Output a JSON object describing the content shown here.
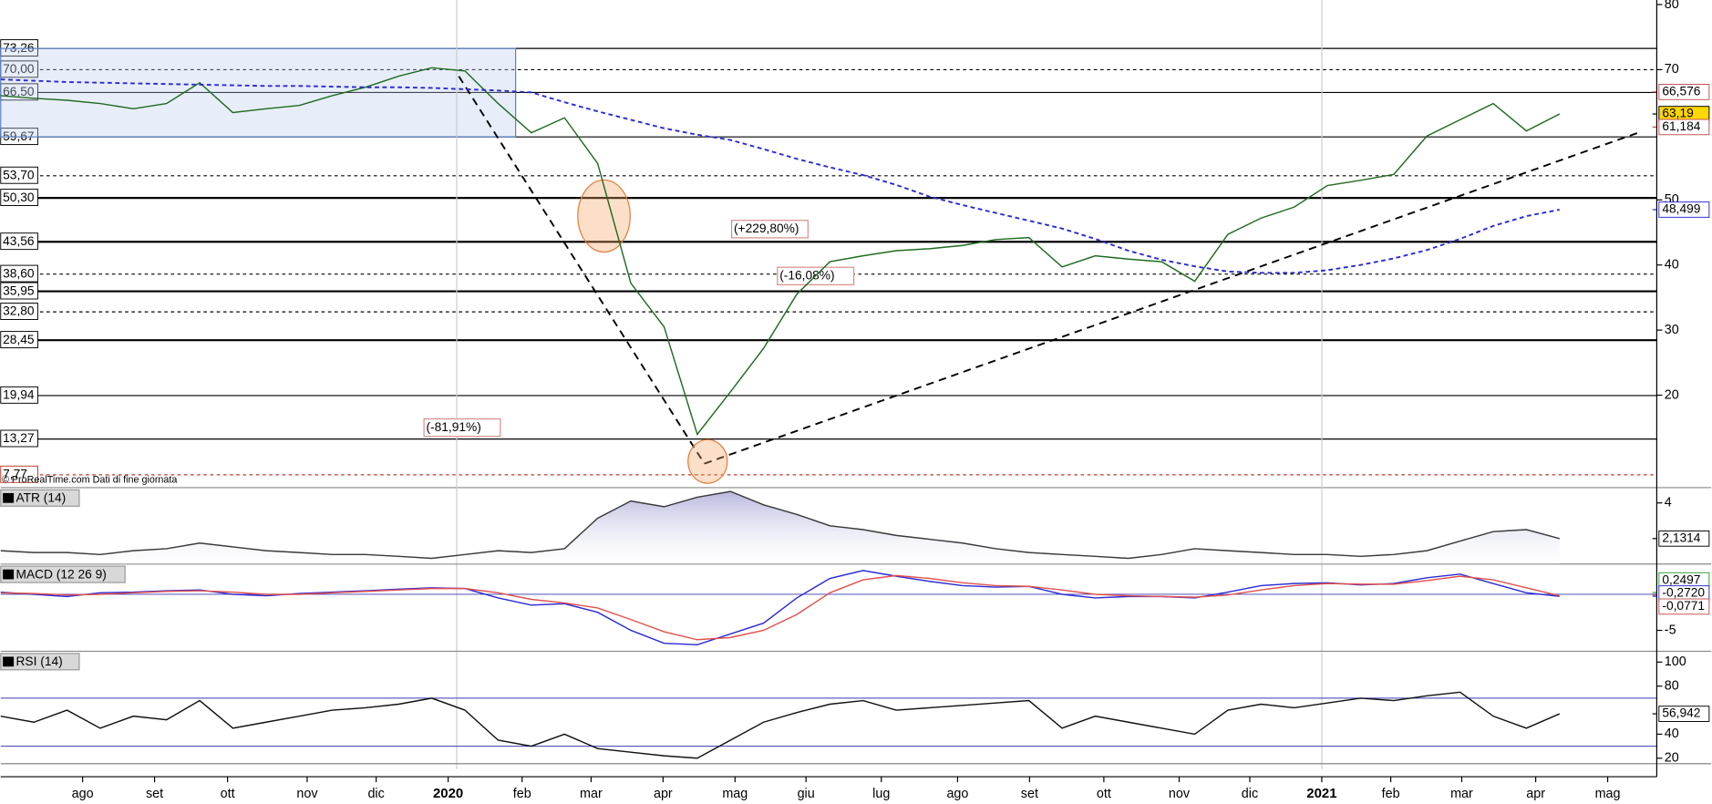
{
  "chart_data": [
    {
      "type": "line",
      "name": "price",
      "series": [
        {
          "name": "price",
          "color": "#1f6b1f",
          "values": [
            66,
            65.6,
            65.3,
            64.8,
            64,
            64.8,
            68,
            63.4,
            64,
            64.5,
            66,
            67.3,
            69,
            70.3,
            69.8,
            64.8,
            60.3,
            62.6,
            55.6,
            37.2,
            30.5,
            14,
            20.5,
            27.2,
            35.5,
            40.5,
            41.4,
            42.2,
            42.5,
            43,
            43.9,
            44.2,
            39.7,
            41.4,
            40.9,
            40.5,
            37.5,
            44.7,
            47.2,
            48.9,
            52.2,
            53,
            53.9,
            59.8,
            62.3,
            64.8,
            60.6,
            63.19
          ]
        },
        {
          "name": "ma",
          "color": "#2b2bd6",
          "dashed": true,
          "values": [
            68.5,
            68.3,
            68.1,
            68,
            67.9,
            67.8,
            67.7,
            67.6,
            67.5,
            67.5,
            67.4,
            67.3,
            67.3,
            67.2,
            67,
            66.8,
            66.5,
            65,
            63.6,
            62.3,
            61,
            60,
            59.2,
            57.8,
            56.3,
            55,
            53.8,
            52.3,
            50.5,
            49.2,
            48,
            46.8,
            45.6,
            44,
            42.2,
            40.8,
            39.8,
            39,
            38.8,
            38.8,
            39.2,
            40,
            41,
            42.3,
            44,
            46,
            47.5,
            48.499
          ]
        }
      ],
      "ylim": [
        5.8,
        80.7
      ],
      "yticks": [
        20,
        30,
        40,
        50,
        70,
        80
      ],
      "xlim": [
        0,
        49.93
      ],
      "xticks": [
        {
          "value": 2.47,
          "label": "ago"
        },
        {
          "value": 4.64,
          "label": "set"
        },
        {
          "value": 6.84,
          "label": "ott"
        },
        {
          "value": 9.24,
          "label": "nov"
        },
        {
          "value": 11.32,
          "label": "dic"
        },
        {
          "value": 13.49,
          "label": "2020"
        },
        {
          "value": 15.72,
          "label": "feb"
        },
        {
          "value": 17.8,
          "label": "mar"
        },
        {
          "value": 19.97,
          "label": "apr"
        },
        {
          "value": 22.14,
          "label": "mag"
        },
        {
          "value": 24.28,
          "label": "giu"
        },
        {
          "value": 26.55,
          "label": "lug"
        },
        {
          "value": 28.85,
          "label": "ago"
        },
        {
          "value": 31.02,
          "label": "set"
        },
        {
          "value": 33.26,
          "label": "ott"
        },
        {
          "value": 35.53,
          "label": "nov"
        },
        {
          "value": 37.66,
          "label": "dic"
        },
        {
          "value": 39.83,
          "label": "2021"
        },
        {
          "value": 41.91,
          "label": "feb"
        },
        {
          "value": 44.05,
          "label": "mar"
        },
        {
          "value": 46.28,
          "label": "apr"
        },
        {
          "value": 48.45,
          "label": "mag"
        }
      ],
      "levels": [
        {
          "value": 73.26,
          "label": "73,26",
          "style": "solid"
        },
        {
          "value": 70.0,
          "label": "70,00",
          "style": "dotted"
        },
        {
          "value": 66.5,
          "label": "66,50",
          "style": "solid"
        },
        {
          "value": 59.67,
          "label": "59,67",
          "style": "solid"
        },
        {
          "value": 53.7,
          "label": "53,70",
          "style": "dotted"
        },
        {
          "value": 50.3,
          "label": "50,30",
          "style": "bold"
        },
        {
          "value": 43.56,
          "label": "43,56",
          "style": "bold"
        },
        {
          "value": 38.6,
          "label": "38,60",
          "style": "dotted"
        },
        {
          "value": 35.95,
          "label": "35,95",
          "style": "bold"
        },
        {
          "value": 32.8,
          "label": "32,80",
          "style": "dotted"
        },
        {
          "value": 28.45,
          "label": "28,45",
          "style": "bold"
        },
        {
          "value": 19.94,
          "label": "19,94",
          "style": "solid"
        },
        {
          "value": 13.27,
          "label": "13,27",
          "style": "solid"
        },
        {
          "value": 7.77,
          "label": "7,77",
          "style": "dotted",
          "color": "#c0392b"
        }
      ],
      "last_values": [
        {
          "value": 66.576,
          "label": "66,576",
          "color": "#c0504d",
          "bg": "#ffffff"
        },
        {
          "value": 63.19,
          "label": "63,19",
          "color": "#000000",
          "bg": "#ffd700"
        },
        {
          "value": 61.184,
          "label": "61,184",
          "color": "#c0504d",
          "bg": "#ffffff"
        },
        {
          "value": 48.499,
          "label": "48,499",
          "color": "#2b2bd6",
          "bg": "#ffffff"
        }
      ],
      "annotations": [
        "(+229,80%)",
        "(-16,08%)",
        "(-81,91%)"
      ],
      "source": "© ProRealTime.com Dati di fine giornata"
    },
    {
      "type": "area",
      "title": "ATR (14)",
      "color": "#3a3a3a",
      "fill": "#b8b8de",
      "values": [
        1.5,
        1.4,
        1.4,
        1.3,
        1.5,
        1.6,
        1.9,
        1.7,
        1.5,
        1.4,
        1.3,
        1.3,
        1.2,
        1.1,
        1.3,
        1.5,
        1.4,
        1.6,
        3.2,
        4.1,
        3.8,
        4.3,
        4.6,
        3.9,
        3.4,
        2.8,
        2.6,
        2.3,
        2.1,
        1.9,
        1.6,
        1.4,
        1.3,
        1.2,
        1.1,
        1.3,
        1.6,
        1.5,
        1.4,
        1.3,
        1.3,
        1.2,
        1.3,
        1.5,
        2.0,
        2.5,
        2.6,
        2.1314
      ],
      "ylim": [
        0.8,
        4.8
      ],
      "yticks": [
        4
      ],
      "last_values": [
        {
          "value": 2.1314,
          "label": "2,1314",
          "color": "#000000",
          "bg": "#ffffff"
        }
      ]
    },
    {
      "type": "line",
      "title": "MACD (12 26 9)",
      "series": [
        {
          "name": "macd",
          "color": "#2b2bd6",
          "values": [
            0.3,
            0,
            -0.3,
            0.2,
            0.3,
            0.5,
            0.6,
            0,
            -0.2,
            0.1,
            0.3,
            0.5,
            0.7,
            0.9,
            0.8,
            -0.5,
            -1.5,
            -1.3,
            -2.5,
            -5,
            -6.8,
            -7,
            -5.5,
            -4,
            -0.5,
            2.2,
            3.3,
            2.5,
            1.8,
            1.2,
            1,
            1.1,
            0,
            -0.5,
            -0.3,
            -0.3,
            -0.5,
            0.3,
            1.2,
            1.5,
            1.6,
            1.3,
            1.5,
            2.3,
            2.8,
            1.5,
            0.2,
            -0.272
          ]
        },
        {
          "name": "signal",
          "color": "#e0504d",
          "values": [
            0.2,
            0.1,
            -0.1,
            0,
            0.2,
            0.4,
            0.5,
            0.3,
            0,
            0,
            0.2,
            0.4,
            0.6,
            0.8,
            0.8,
            0.2,
            -0.7,
            -1.2,
            -1.9,
            -3.5,
            -5.2,
            -6.3,
            -6,
            -5,
            -2.8,
            0.2,
            2,
            2.6,
            2.2,
            1.6,
            1.2,
            1.1,
            0.6,
            0,
            -0.2,
            -0.3,
            -0.4,
            -0.1,
            0.6,
            1.2,
            1.5,
            1.4,
            1.4,
            1.9,
            2.5,
            2,
            0.9,
            -0.195
          ]
        }
      ],
      "ylim": [
        -7.9,
        4.2
      ],
      "yticks": [
        -5
      ],
      "zero_line": 0,
      "last_values": [
        {
          "value": 0.2497,
          "label": "0,2497",
          "color": "#2e9e2e",
          "bg": "#ffffff"
        },
        {
          "value": -0.272,
          "label": "-0,2720",
          "color": "#2b2bd6",
          "bg": "#ffffff"
        },
        {
          "value": -0.0771,
          "label": "-0,0771",
          "color": "#c0504d",
          "bg": "#ffffff"
        }
      ]
    },
    {
      "type": "line",
      "title": "RSI (14)",
      "series": [
        {
          "name": "rsi",
          "color": "#111111",
          "values": [
            55,
            50,
            60,
            45,
            55,
            52,
            68,
            45,
            50,
            55,
            60,
            62,
            65,
            70,
            60,
            35,
            30,
            40,
            28,
            25,
            22,
            20,
            35,
            50,
            58,
            65,
            68,
            60,
            62,
            64,
            66,
            68,
            45,
            55,
            50,
            45,
            40,
            60,
            65,
            62,
            66,
            70,
            68,
            72,
            75,
            55,
            45,
            56.942
          ]
        }
      ],
      "ylim": [
        15.5,
        109
      ],
      "yticks": [
        100,
        80,
        40,
        20
      ],
      "hlines": [
        70,
        30
      ],
      "last_values": [
        {
          "value": 56.942,
          "label": "56,942",
          "color": "#000000",
          "bg": "#ffffff"
        }
      ]
    }
  ]
}
